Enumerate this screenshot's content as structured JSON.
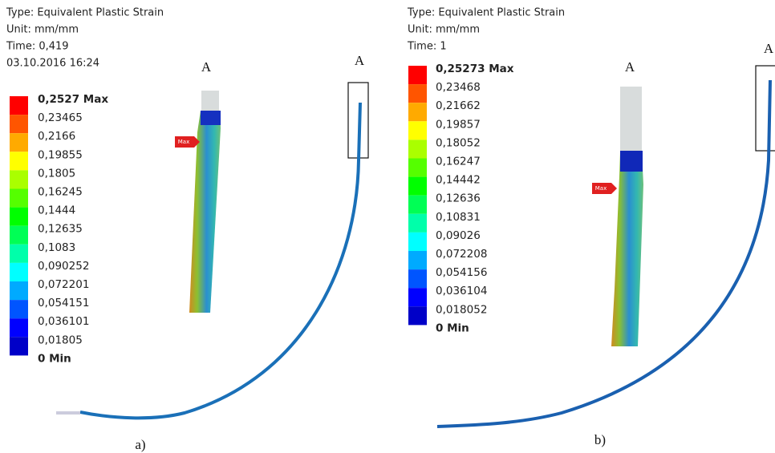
{
  "panels": [
    {
      "header": [
        "Type: Equivalent Plastic Strain",
        "Unit: mm/mm",
        "Time: 0,419",
        "03.10.2016 16:24"
      ],
      "legend": [
        "0,2527 Max",
        "0,23465",
        "0,2166",
        "0,19855",
        "0,1805",
        "0,16245",
        "0,1444",
        "0,12635",
        "0,1083",
        "0,090252",
        "0,072201",
        "0,054151",
        "0,036101",
        "0,01805",
        "0 Min"
      ],
      "detail_label": "A",
      "zoom_label": "A",
      "max_marker": "Max",
      "caption": "a)"
    },
    {
      "header": [
        "Type: Equivalent Plastic Strain",
        "Unit: mm/mm",
        "Time: 1"
      ],
      "legend": [
        "0,25273 Max",
        "0,23468",
        "0,21662",
        "0,19857",
        "0,18052",
        "0,16247",
        "0,14442",
        "0,12636",
        "0,10831",
        "0,09026",
        "0,072208",
        "0,054156",
        "0,036104",
        "0,018052",
        "0 Min"
      ],
      "detail_label": "A",
      "zoom_label": "A",
      "max_marker": "Max",
      "caption": "b)"
    }
  ]
}
